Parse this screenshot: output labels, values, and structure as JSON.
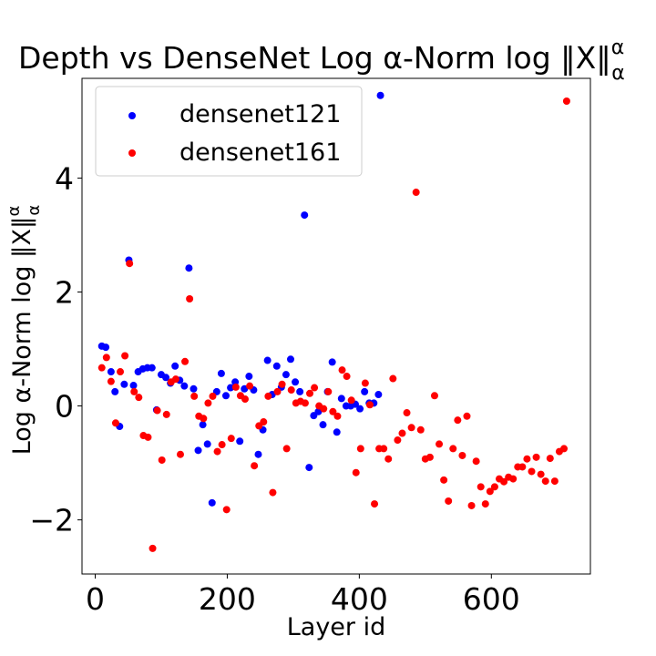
{
  "chart_data": {
    "type": "scatter",
    "title": "Depth vs DenseNet Log α-Norm log ‖X‖",
    "title_superscript": "α",
    "title_subscript": "α",
    "xlabel": "Layer id",
    "ylabel": "Log α-Norm log ‖X‖",
    "ylabel_superscript": "α",
    "ylabel_subscript": "α",
    "xlim": [
      -20,
      750
    ],
    "ylim": [
      -2.95,
      5.75
    ],
    "xticks": [
      0,
      200,
      400,
      600
    ],
    "yticks": [
      -2,
      0,
      2,
      4
    ],
    "ytick_labels": [
      "−2",
      "0",
      "2",
      "4"
    ],
    "grid": false,
    "legend_position": "upper left",
    "series": [
      {
        "name": "densenet121",
        "color": "#0000ff",
        "points": [
          [
            10,
            1.05
          ],
          [
            16,
            1.03
          ],
          [
            24,
            0.6
          ],
          [
            30,
            0.25
          ],
          [
            37,
            -0.36
          ],
          [
            44,
            0.38
          ],
          [
            51,
            2.56
          ],
          [
            58,
            0.36
          ],
          [
            65,
            0.6
          ],
          [
            72,
            0.65
          ],
          [
            79,
            0.67
          ],
          [
            86,
            0.67
          ],
          [
            93,
            -0.07
          ],
          [
            100,
            0.55
          ],
          [
            107,
            0.5
          ],
          [
            114,
            0.4
          ],
          [
            121,
            0.7
          ],
          [
            128,
            0.45
          ],
          [
            135,
            0.35
          ],
          [
            142,
            2.42
          ],
          [
            149,
            0.3
          ],
          [
            156,
            -0.78
          ],
          [
            163,
            -0.33
          ],
          [
            170,
            -0.67
          ],
          [
            177,
            -1.7
          ],
          [
            184,
            0.25
          ],
          [
            191,
            0.57
          ],
          [
            198,
            0.18
          ],
          [
            205,
            0.32
          ],
          [
            212,
            0.42
          ],
          [
            219,
            -0.62
          ],
          [
            226,
            0.3
          ],
          [
            233,
            0.52
          ],
          [
            240,
            0.28
          ],
          [
            247,
            -0.85
          ],
          [
            254,
            -0.42
          ],
          [
            261,
            0.8
          ],
          [
            268,
            0.2
          ],
          [
            275,
            0.7
          ],
          [
            282,
            0.33
          ],
          [
            289,
            0.55
          ],
          [
            296,
            0.82
          ],
          [
            303,
            0.42
          ],
          [
            310,
            0.25
          ],
          [
            317,
            3.35
          ],
          [
            324,
            -1.08
          ],
          [
            331,
            -0.17
          ],
          [
            338,
            -0.1
          ],
          [
            345,
            -0.33
          ],
          [
            352,
            0.25
          ],
          [
            359,
            0.77
          ],
          [
            366,
            -0.46
          ],
          [
            373,
            0.13
          ],
          [
            380,
            0.0
          ],
          [
            387,
            0.0
          ],
          [
            394,
            0.03
          ],
          [
            401,
            -0.05
          ],
          [
            408,
            0.25
          ],
          [
            415,
            0.05
          ],
          [
            422,
            0.05
          ],
          [
            429,
            0.2
          ],
          [
            432,
            5.45
          ]
        ]
      },
      {
        "name": "densenet161",
        "color": "#ff0000",
        "points": [
          [
            10,
            0.67
          ],
          [
            17,
            0.85
          ],
          [
            24,
            0.43
          ],
          [
            31,
            -0.3
          ],
          [
            38,
            0.6
          ],
          [
            45,
            0.88
          ],
          [
            52,
            2.5
          ],
          [
            59,
            0.25
          ],
          [
            66,
            0.15
          ],
          [
            73,
            -0.52
          ],
          [
            80,
            -0.55
          ],
          [
            87,
            -2.5
          ],
          [
            94,
            -0.08
          ],
          [
            101,
            -0.95
          ],
          [
            108,
            -0.15
          ],
          [
            115,
            0.42
          ],
          [
            122,
            0.47
          ],
          [
            129,
            -0.85
          ],
          [
            136,
            0.78
          ],
          [
            143,
            1.88
          ],
          [
            150,
            0.17
          ],
          [
            157,
            -0.18
          ],
          [
            164,
            -0.22
          ],
          [
            171,
            0.05
          ],
          [
            178,
            0.17
          ],
          [
            185,
            -0.8
          ],
          [
            192,
            -0.68
          ],
          [
            199,
            -1.82
          ],
          [
            206,
            -0.57
          ],
          [
            213,
            0.33
          ],
          [
            220,
            0.18
          ],
          [
            227,
            0.12
          ],
          [
            234,
            0.35
          ],
          [
            241,
            -1.05
          ],
          [
            248,
            -0.35
          ],
          [
            255,
            -0.28
          ],
          [
            262,
            0.17
          ],
          [
            269,
            -1.52
          ],
          [
            276,
            0.25
          ],
          [
            283,
            0.38
          ],
          [
            290,
            -0.75
          ],
          [
            297,
            0.28
          ],
          [
            304,
            0.05
          ],
          [
            311,
            0.08
          ],
          [
            318,
            0.05
          ],
          [
            325,
            0.22
          ],
          [
            332,
            0.32
          ],
          [
            339,
            0.0
          ],
          [
            346,
            -0.05
          ],
          [
            353,
            0.25
          ],
          [
            360,
            -0.1
          ],
          [
            367,
            -0.18
          ],
          [
            374,
            0.63
          ],
          [
            381,
            0.52
          ],
          [
            388,
            0.1
          ],
          [
            395,
            -1.17
          ],
          [
            402,
            -0.75
          ],
          [
            409,
            0.4
          ],
          [
            416,
            0.02
          ],
          [
            423,
            -1.72
          ],
          [
            430,
            -0.75
          ],
          [
            437,
            -0.75
          ],
          [
            444,
            -0.93
          ],
          [
            451,
            0.48
          ],
          [
            458,
            -0.6
          ],
          [
            465,
            -0.48
          ],
          [
            472,
            -0.12
          ],
          [
            479,
            -0.38
          ],
          [
            486,
            3.75
          ],
          [
            493,
            -0.42
          ],
          [
            500,
            -0.93
          ],
          [
            507,
            -0.9
          ],
          [
            514,
            0.18
          ],
          [
            521,
            -0.67
          ],
          [
            528,
            -1.3
          ],
          [
            535,
            -1.67
          ],
          [
            542,
            -0.75
          ],
          [
            549,
            -0.25
          ],
          [
            556,
            -0.87
          ],
          [
            563,
            -0.18
          ],
          [
            570,
            -1.75
          ],
          [
            577,
            -0.97
          ],
          [
            584,
            -1.42
          ],
          [
            591,
            -1.72
          ],
          [
            598,
            -1.5
          ],
          [
            605,
            -1.42
          ],
          [
            612,
            -1.28
          ],
          [
            619,
            -1.33
          ],
          [
            626,
            -1.25
          ],
          [
            633,
            -1.28
          ],
          [
            640,
            -1.07
          ],
          [
            647,
            -1.07
          ],
          [
            654,
            -0.93
          ],
          [
            661,
            -1.15
          ],
          [
            668,
            -0.9
          ],
          [
            675,
            -1.2
          ],
          [
            682,
            -1.32
          ],
          [
            689,
            -0.92
          ],
          [
            696,
            -1.32
          ],
          [
            703,
            -0.8
          ],
          [
            710,
            -0.75
          ],
          [
            714,
            5.35
          ]
        ]
      }
    ]
  }
}
